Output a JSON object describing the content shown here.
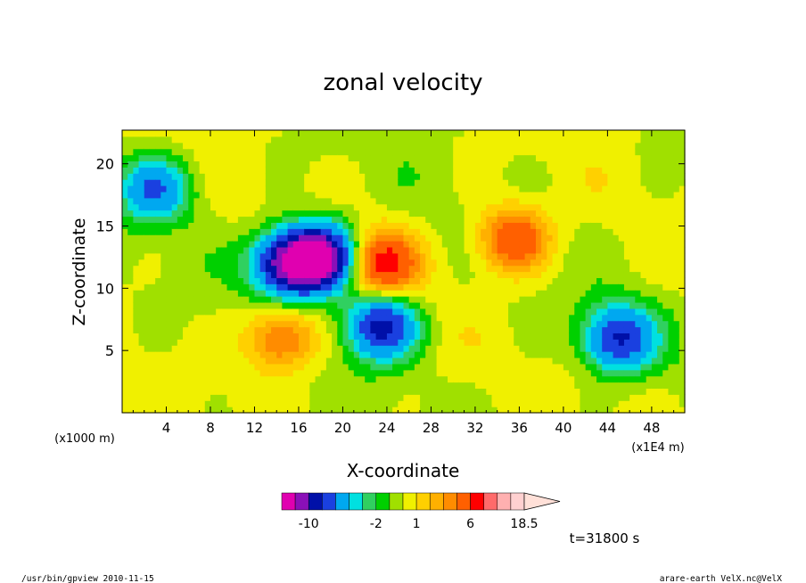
{
  "chart_data": {
    "type": "heatmap",
    "title": "zonal velocity",
    "xlabel": "X-coordinate",
    "ylabel": "Z-coordinate",
    "x_unit_label": "(x1E4 m)",
    "y_unit_label": "(x1000 m)",
    "xlim": [
      0,
      51
    ],
    "ylim": [
      0,
      22.7
    ],
    "x_ticks": [
      4,
      8,
      12,
      16,
      20,
      24,
      28,
      32,
      36,
      40,
      44,
      48
    ],
    "x_tick_labels": [
      "4",
      "8",
      "12",
      "16",
      "20",
      "24",
      "28",
      "32",
      "36",
      "40",
      "44",
      "48"
    ],
    "y_ticks": [
      5,
      10,
      15,
      20
    ],
    "y_tick_labels": [
      "5",
      "10",
      "15",
      "20"
    ],
    "colorbar": {
      "levels": [
        -14,
        -12,
        -10,
        -8,
        -6,
        -4,
        -3,
        -2,
        -1,
        0,
        1,
        2,
        3,
        4,
        6,
        9,
        12,
        15,
        18.5
      ],
      "colors": [
        "#e000b0",
        "#8a10b8",
        "#0010a8",
        "#1a40e0",
        "#00a8f0",
        "#00e0e0",
        "#30d060",
        "#00d000",
        "#a0e000",
        "#f0f000",
        "#ffd000",
        "#ffb000",
        "#ff8c00",
        "#ff6000",
        "#ff0000",
        "#ff6a6a",
        "#ffb0b0",
        "#ffd0d0"
      ],
      "tick_labels": [
        "-10",
        "-2",
        "1",
        "6",
        "18.5"
      ]
    },
    "time_label": "t=31800 s",
    "features": [
      {
        "x": 15,
        "z": 12,
        "value": -10
      },
      {
        "x": 18,
        "z": 12.5,
        "value": -13
      },
      {
        "x": 23.5,
        "z": 7,
        "value": -9
      },
      {
        "x": 23.5,
        "z": 12,
        "value": 7
      },
      {
        "x": 14.5,
        "z": 6,
        "value": 5
      },
      {
        "x": 35.5,
        "z": 14,
        "value": 6
      },
      {
        "x": 45,
        "z": 6,
        "value": -8
      },
      {
        "x": 3,
        "z": 18,
        "value": -6
      }
    ]
  },
  "footer": {
    "left": "/usr/bin/gpview   2010-11-15",
    "right": "arare-earth_VelX.nc@VelX"
  },
  "colors": {
    "background": "#ffffff",
    "text": "#000000"
  }
}
